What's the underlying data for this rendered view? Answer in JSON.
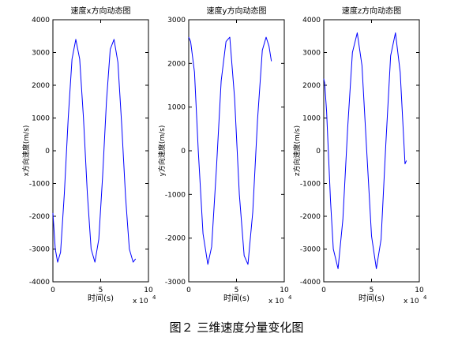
{
  "caption": "图２ 三维速度分量变化图",
  "chart_data": [
    {
      "type": "line",
      "title": "速度x方向动态图",
      "xlabel": "时间(s)",
      "ylabel": "x方向速度(m/s)",
      "x_exponent": "x 10",
      "x_exponent_power": "4",
      "xlim": [
        0,
        10
      ],
      "ylim": [
        -4000,
        4000
      ],
      "xticks": [
        0,
        5,
        10
      ],
      "yticks": [
        -4000,
        -3000,
        -2000,
        -1000,
        0,
        1000,
        2000,
        3000,
        4000
      ],
      "grid": false,
      "line_color": "#0000ff",
      "series": [
        {
          "x": [
            0,
            0.25,
            0.5,
            0.8,
            1.2,
            1.6,
            2.0,
            2.4,
            2.8,
            3.2,
            3.6,
            4.0,
            4.4,
            4.8,
            5.2,
            5.6,
            6.0,
            6.4,
            6.8,
            7.2,
            7.6,
            8.0,
            8.4,
            8.65
          ],
          "y": [
            -1900,
            -3000,
            -3400,
            -3100,
            -1300,
            1000,
            2800,
            3400,
            2800,
            1000,
            -1300,
            -3000,
            -3400,
            -2700,
            -800,
            1500,
            3100,
            3400,
            2700,
            800,
            -1400,
            -3000,
            -3400,
            -3300
          ]
        }
      ]
    },
    {
      "type": "line",
      "title": "速度y方向动态图",
      "xlabel": "时间(s)",
      "ylabel": "y方向速度(m/s)",
      "x_exponent": "x 10",
      "x_exponent_power": "4",
      "xlim": [
        0,
        10
      ],
      "ylim": [
        -3000,
        3000
      ],
      "xticks": [
        0,
        5,
        10
      ],
      "yticks": [
        -3000,
        -2000,
        -1000,
        0,
        1000,
        2000,
        3000
      ],
      "grid": false,
      "line_color": "#0000ff",
      "series": [
        {
          "x": [
            0,
            0.2,
            0.6,
            1.0,
            1.5,
            2.0,
            2.4,
            2.9,
            3.4,
            3.9,
            4.3,
            4.8,
            5.3,
            5.8,
            6.2,
            6.7,
            7.2,
            7.7,
            8.1,
            8.4,
            8.65
          ],
          "y": [
            2600,
            2500,
            1800,
            0,
            -1900,
            -2600,
            -2200,
            -400,
            1600,
            2500,
            2600,
            1200,
            -1000,
            -2400,
            -2600,
            -1400,
            700,
            2300,
            2600,
            2400,
            2050
          ]
        }
      ]
    },
    {
      "type": "line",
      "title": "速度z方向动态图",
      "xlabel": "时间(s)",
      "ylabel": "z方向速度(m/s)",
      "x_exponent": "x 10",
      "x_exponent_power": "4",
      "xlim": [
        0,
        10
      ],
      "ylim": [
        -4000,
        4000
      ],
      "xticks": [
        0,
        5,
        10
      ],
      "yticks": [
        -4000,
        -3000,
        -2000,
        -1000,
        0,
        1000,
        2000,
        3000,
        4000
      ],
      "grid": false,
      "line_color": "#0000ff",
      "series": [
        {
          "x": [
            0,
            0.1,
            0.3,
            0.7,
            1.0,
            1.5,
            2.0,
            2.5,
            3.0,
            3.5,
            4.0,
            4.5,
            5.0,
            5.5,
            6.0,
            6.5,
            7.0,
            7.5,
            8.0,
            8.5,
            8.65
          ],
          "y": [
            2200,
            2050,
            1200,
            -1500,
            -3000,
            -3600,
            -2100,
            700,
            3000,
            3600,
            2600,
            0,
            -2600,
            -3600,
            -2700,
            200,
            2900,
            3600,
            2400,
            -400,
            -300
          ]
        }
      ]
    }
  ]
}
